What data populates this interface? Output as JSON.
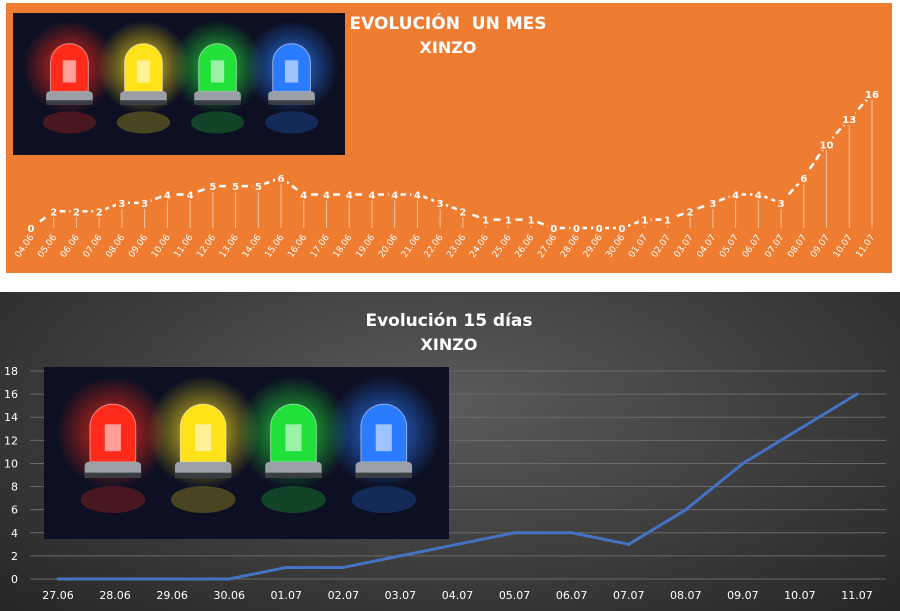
{
  "chart_data": [
    {
      "type": "line",
      "title": "EVOLUCIÓN  UN MES",
      "subtitle": "XINZO",
      "categories": [
        "04.06",
        "05.06",
        "06.06",
        "07.06",
        "08.06",
        "09.06",
        "10.06",
        "11.06",
        "12.06",
        "13.06",
        "14.06",
        "15.06",
        "16.06",
        "17.06",
        "18.06",
        "19.06",
        "20.06",
        "21.06",
        "22.06",
        "23.06",
        "24.06",
        "25.06",
        "26.06",
        "27.06",
        "28.06",
        "29.06",
        "30.06",
        "01.07",
        "02.07",
        "03.07",
        "04.07",
        "05.07",
        "06.07",
        "07.07",
        "08.07",
        "09.07",
        "10.07",
        "11.07"
      ],
      "values": [
        0,
        2,
        2,
        2,
        3,
        3,
        4,
        4,
        5,
        5,
        5,
        6,
        4,
        4,
        4,
        4,
        4,
        4,
        3,
        2,
        1,
        1,
        1,
        0,
        0,
        0,
        0,
        1,
        1,
        2,
        3,
        4,
        4,
        3,
        6,
        10,
        13,
        16
      ],
      "ylim": [
        0,
        16
      ],
      "grid": false,
      "data_labels": true,
      "colors": {
        "background": "#ee7d32",
        "line": "#ffffff",
        "text": "#ffffff"
      }
    },
    {
      "type": "line",
      "title": "Evolución 15 días",
      "subtitle": "XINZO",
      "categories": [
        "27.06",
        "28.06",
        "29.06",
        "30.06",
        "01.07",
        "02.07",
        "03.07",
        "04.07",
        "05.07",
        "06.07",
        "07.07",
        "08.07",
        "09.07",
        "10.07",
        "11.07"
      ],
      "values": [
        0,
        0,
        0,
        0,
        1,
        1,
        2,
        3,
        4,
        4,
        3,
        6,
        10,
        13,
        16
      ],
      "ylim": [
        0,
        18
      ],
      "yticks": [
        0,
        2,
        4,
        6,
        8,
        10,
        12,
        14,
        16,
        18
      ],
      "grid": true,
      "colors": {
        "background": "#3d3d3d",
        "line": "#4472c4",
        "grid": "#6a6a6a",
        "text": "#ffffff"
      }
    }
  ],
  "images": [
    {
      "name": "warning-beacons-image",
      "lights": [
        "#ff2a1a",
        "#ffe21a",
        "#22e03a",
        "#2a7bff"
      ]
    }
  ]
}
